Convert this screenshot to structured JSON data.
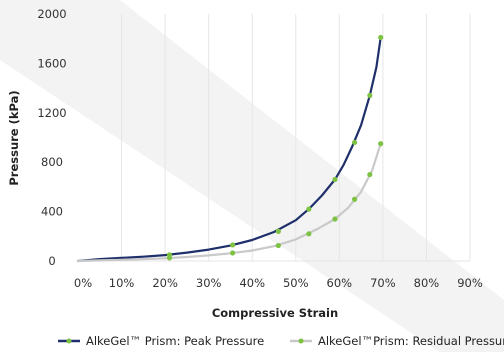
{
  "chart_data": {
    "type": "line",
    "xlabel": "Compressive Strain",
    "ylabel": "Pressure (kPa)",
    "xlim": [
      0,
      90
    ],
    "ylim": [
      0,
      2000
    ],
    "x_ticks": [
      "0%",
      "10%",
      "20%",
      "30%",
      "40%",
      "50%",
      "60%",
      "70%",
      "80%",
      "90%"
    ],
    "x_tick_values": [
      0,
      10,
      20,
      30,
      40,
      50,
      60,
      70,
      80,
      90
    ],
    "y_ticks": [
      "0",
      "400",
      "800",
      "1200",
      "1600",
      "2000"
    ],
    "y_tick_values": [
      0,
      400,
      800,
      1200,
      1600,
      2000
    ],
    "grid": "vertical",
    "legend_position": "bottom",
    "colors": {
      "peak": "#1f2f6b",
      "residual": "#c9c9c9",
      "marker": "#7dc242",
      "grid": "#e6e6e6"
    },
    "series": [
      {
        "name": "AlkeGel™ Prism: Peak Pressure",
        "markers_x": [
          21,
          35.5,
          46,
          53,
          59,
          63.5,
          67,
          69.5
        ],
        "markers_y": [
          50,
          130,
          240,
          420,
          660,
          960,
          1340,
          1810
        ],
        "curve_x": [
          0,
          5,
          10,
          15,
          20,
          25,
          30,
          35,
          40,
          45,
          50,
          53,
          56,
          59,
          61,
          63,
          65,
          67,
          68.5,
          69.5
        ],
        "curve_y": [
          0,
          15,
          25,
          35,
          48,
          68,
          92,
          125,
          170,
          235,
          330,
          420,
          530,
          660,
          780,
          930,
          1100,
          1340,
          1570,
          1810
        ]
      },
      {
        "name": "AlkeGel™Prism: Residual Pressure",
        "markers_x": [
          21,
          35.5,
          46,
          53,
          59,
          63.5,
          67,
          69.5
        ],
        "markers_y": [
          25,
          65,
          125,
          220,
          340,
          500,
          700,
          950
        ],
        "curve_x": [
          0,
          5,
          10,
          15,
          20,
          25,
          30,
          35,
          40,
          45,
          50,
          55,
          59,
          62,
          65,
          67.5,
          69.5
        ],
        "curve_y": [
          0,
          5,
          10,
          15,
          22,
          32,
          45,
          62,
          85,
          120,
          175,
          260,
          340,
          430,
          560,
          730,
          950
        ]
      }
    ]
  }
}
